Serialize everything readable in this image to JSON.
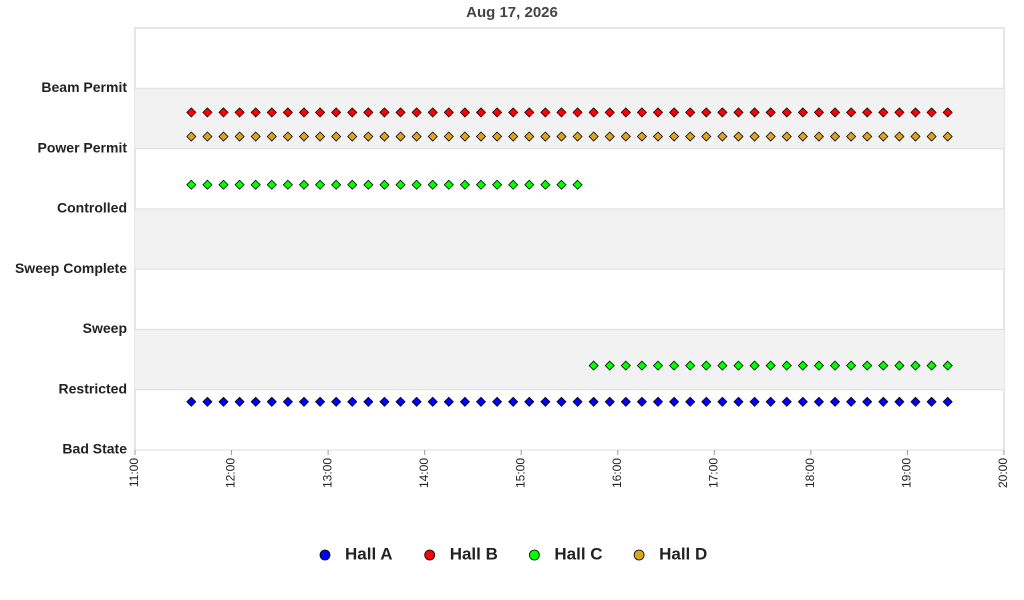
{
  "chart_data": {
    "type": "scatter",
    "title": "Aug 17, 2026",
    "x": [
      "11:35",
      "11:45",
      "11:55",
      "12:05",
      "12:15",
      "12:25",
      "12:35",
      "12:45",
      "12:55",
      "13:05",
      "13:15",
      "13:25",
      "13:35",
      "13:45",
      "13:55",
      "14:05",
      "14:15",
      "14:25",
      "14:35",
      "14:45",
      "14:55",
      "15:05",
      "15:15",
      "15:25",
      "15:35",
      "15:45",
      "15:55",
      "16:05",
      "16:15",
      "16:25",
      "16:35",
      "16:45",
      "16:55",
      "17:05",
      "17:15",
      "17:25",
      "17:35",
      "17:45",
      "17:55",
      "18:05",
      "18:15",
      "18:25",
      "18:35",
      "18:45",
      "18:55",
      "19:05",
      "19:15",
      "19:25"
    ],
    "series": [
      {
        "name": "Hall A",
        "color": "#0000ff",
        "values": [
          0.8,
          0.8,
          0.8,
          0.8,
          0.8,
          0.8,
          0.8,
          0.8,
          0.8,
          0.8,
          0.8,
          0.8,
          0.8,
          0.8,
          0.8,
          0.8,
          0.8,
          0.8,
          0.8,
          0.8,
          0.8,
          0.8,
          0.8,
          0.8,
          0.8,
          0.8,
          0.8,
          0.8,
          0.8,
          0.8,
          0.8,
          0.8,
          0.8,
          0.8,
          0.8,
          0.8,
          0.8,
          0.8,
          0.8,
          0.8,
          0.8,
          0.8,
          0.8,
          0.8,
          0.8,
          0.8,
          0.8,
          0.8
        ]
      },
      {
        "name": "Hall B",
        "color": "#ff0000",
        "values": [
          5.6,
          5.6,
          5.6,
          5.6,
          5.6,
          5.6,
          5.6,
          5.6,
          5.6,
          5.6,
          5.6,
          5.6,
          5.6,
          5.6,
          5.6,
          5.6,
          5.6,
          5.6,
          5.6,
          5.6,
          5.6,
          5.6,
          5.6,
          5.6,
          5.6,
          5.6,
          5.6,
          5.6,
          5.6,
          5.6,
          5.6,
          5.6,
          5.6,
          5.6,
          5.6,
          5.6,
          5.6,
          5.6,
          5.6,
          5.6,
          5.6,
          5.6,
          5.6,
          5.6,
          5.6,
          5.6,
          5.6,
          5.6
        ]
      },
      {
        "name": "Hall C",
        "color": "#00ff00",
        "values": [
          4.4,
          4.4,
          4.4,
          4.4,
          4.4,
          4.4,
          4.4,
          4.4,
          4.4,
          4.4,
          4.4,
          4.4,
          4.4,
          4.4,
          4.4,
          4.4,
          4.4,
          4.4,
          4.4,
          4.4,
          4.4,
          4.4,
          4.4,
          4.4,
          4.4,
          1.4,
          1.4,
          1.4,
          1.4,
          1.4,
          1.4,
          1.4,
          1.4,
          1.4,
          1.4,
          1.4,
          1.4,
          1.4,
          1.4,
          1.4,
          1.4,
          1.4,
          1.4,
          1.4,
          1.4,
          1.4,
          1.4,
          1.4
        ]
      },
      {
        "name": "Hall D",
        "color": "#daa520",
        "values": [
          5.2,
          5.2,
          5.2,
          5.2,
          5.2,
          5.2,
          5.2,
          5.2,
          5.2,
          5.2,
          5.2,
          5.2,
          5.2,
          5.2,
          5.2,
          5.2,
          5.2,
          5.2,
          5.2,
          5.2,
          5.2,
          5.2,
          5.2,
          5.2,
          5.2,
          5.2,
          5.2,
          5.2,
          5.2,
          5.2,
          5.2,
          5.2,
          5.2,
          5.2,
          5.2,
          5.2,
          5.2,
          5.2,
          5.2,
          5.2,
          5.2,
          5.2,
          5.2,
          5.2,
          5.2,
          5.2,
          5.2,
          5.2
        ]
      }
    ],
    "xlim": [
      "11:00",
      "20:00"
    ],
    "xticks": [
      "11:00",
      "12:00",
      "13:00",
      "14:00",
      "15:00",
      "16:00",
      "17:00",
      "18:00",
      "19:00",
      "20:00"
    ],
    "ylim": [
      0,
      7
    ],
    "yticks": [
      {
        "value": 0,
        "label": "Bad State"
      },
      {
        "value": 1,
        "label": "Restricted"
      },
      {
        "value": 2,
        "label": "Sweep"
      },
      {
        "value": 3,
        "label": "Sweep Complete"
      },
      {
        "value": 4,
        "label": "Controlled"
      },
      {
        "value": 5,
        "label": "Power Permit"
      },
      {
        "value": 6,
        "label": "Beam Permit"
      }
    ],
    "grid": true,
    "legend": "bottom"
  }
}
